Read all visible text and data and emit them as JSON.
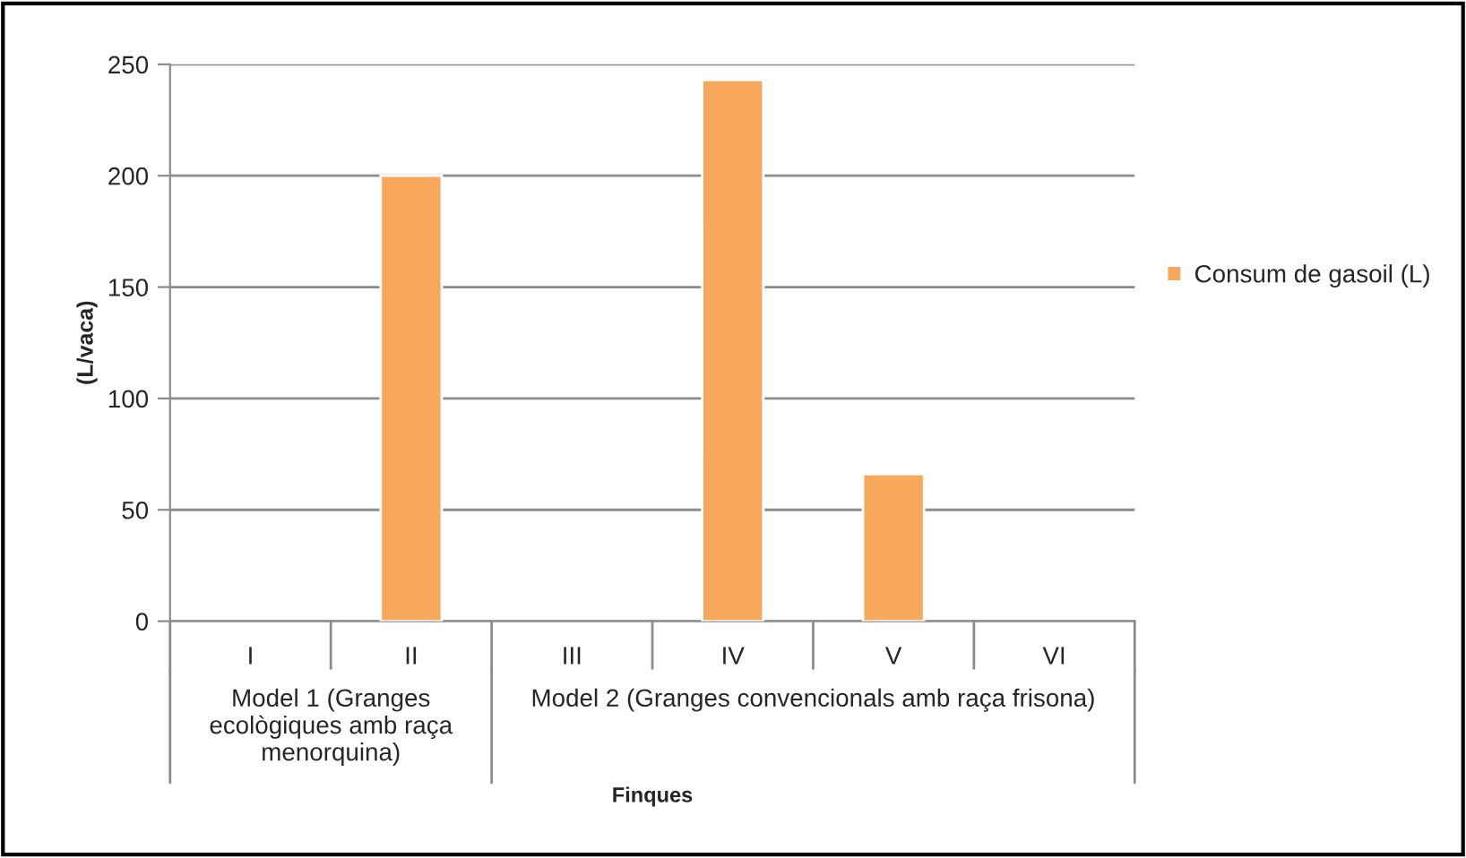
{
  "chart_data": {
    "type": "bar",
    "ylabel": "(L/vaca)",
    "categories": [
      "I",
      "II",
      "III",
      "IV",
      "V",
      "VI"
    ],
    "series": [
      {
        "name": "Consum de gasoil (L)",
        "color": "#f8a85a",
        "values": [
          null,
          200,
          null,
          243,
          66,
          null
        ]
      }
    ],
    "ylim": [
      0,
      250
    ],
    "yticks": [
      0,
      50,
      100,
      150,
      200,
      250
    ],
    "grid": "y",
    "legend": "right",
    "annotations": [
      "Model 1 (Granges ecològiques amb raça menorquina)",
      "Model 2 (Granges convencionals amb raça frisona)",
      "Finques"
    ]
  }
}
